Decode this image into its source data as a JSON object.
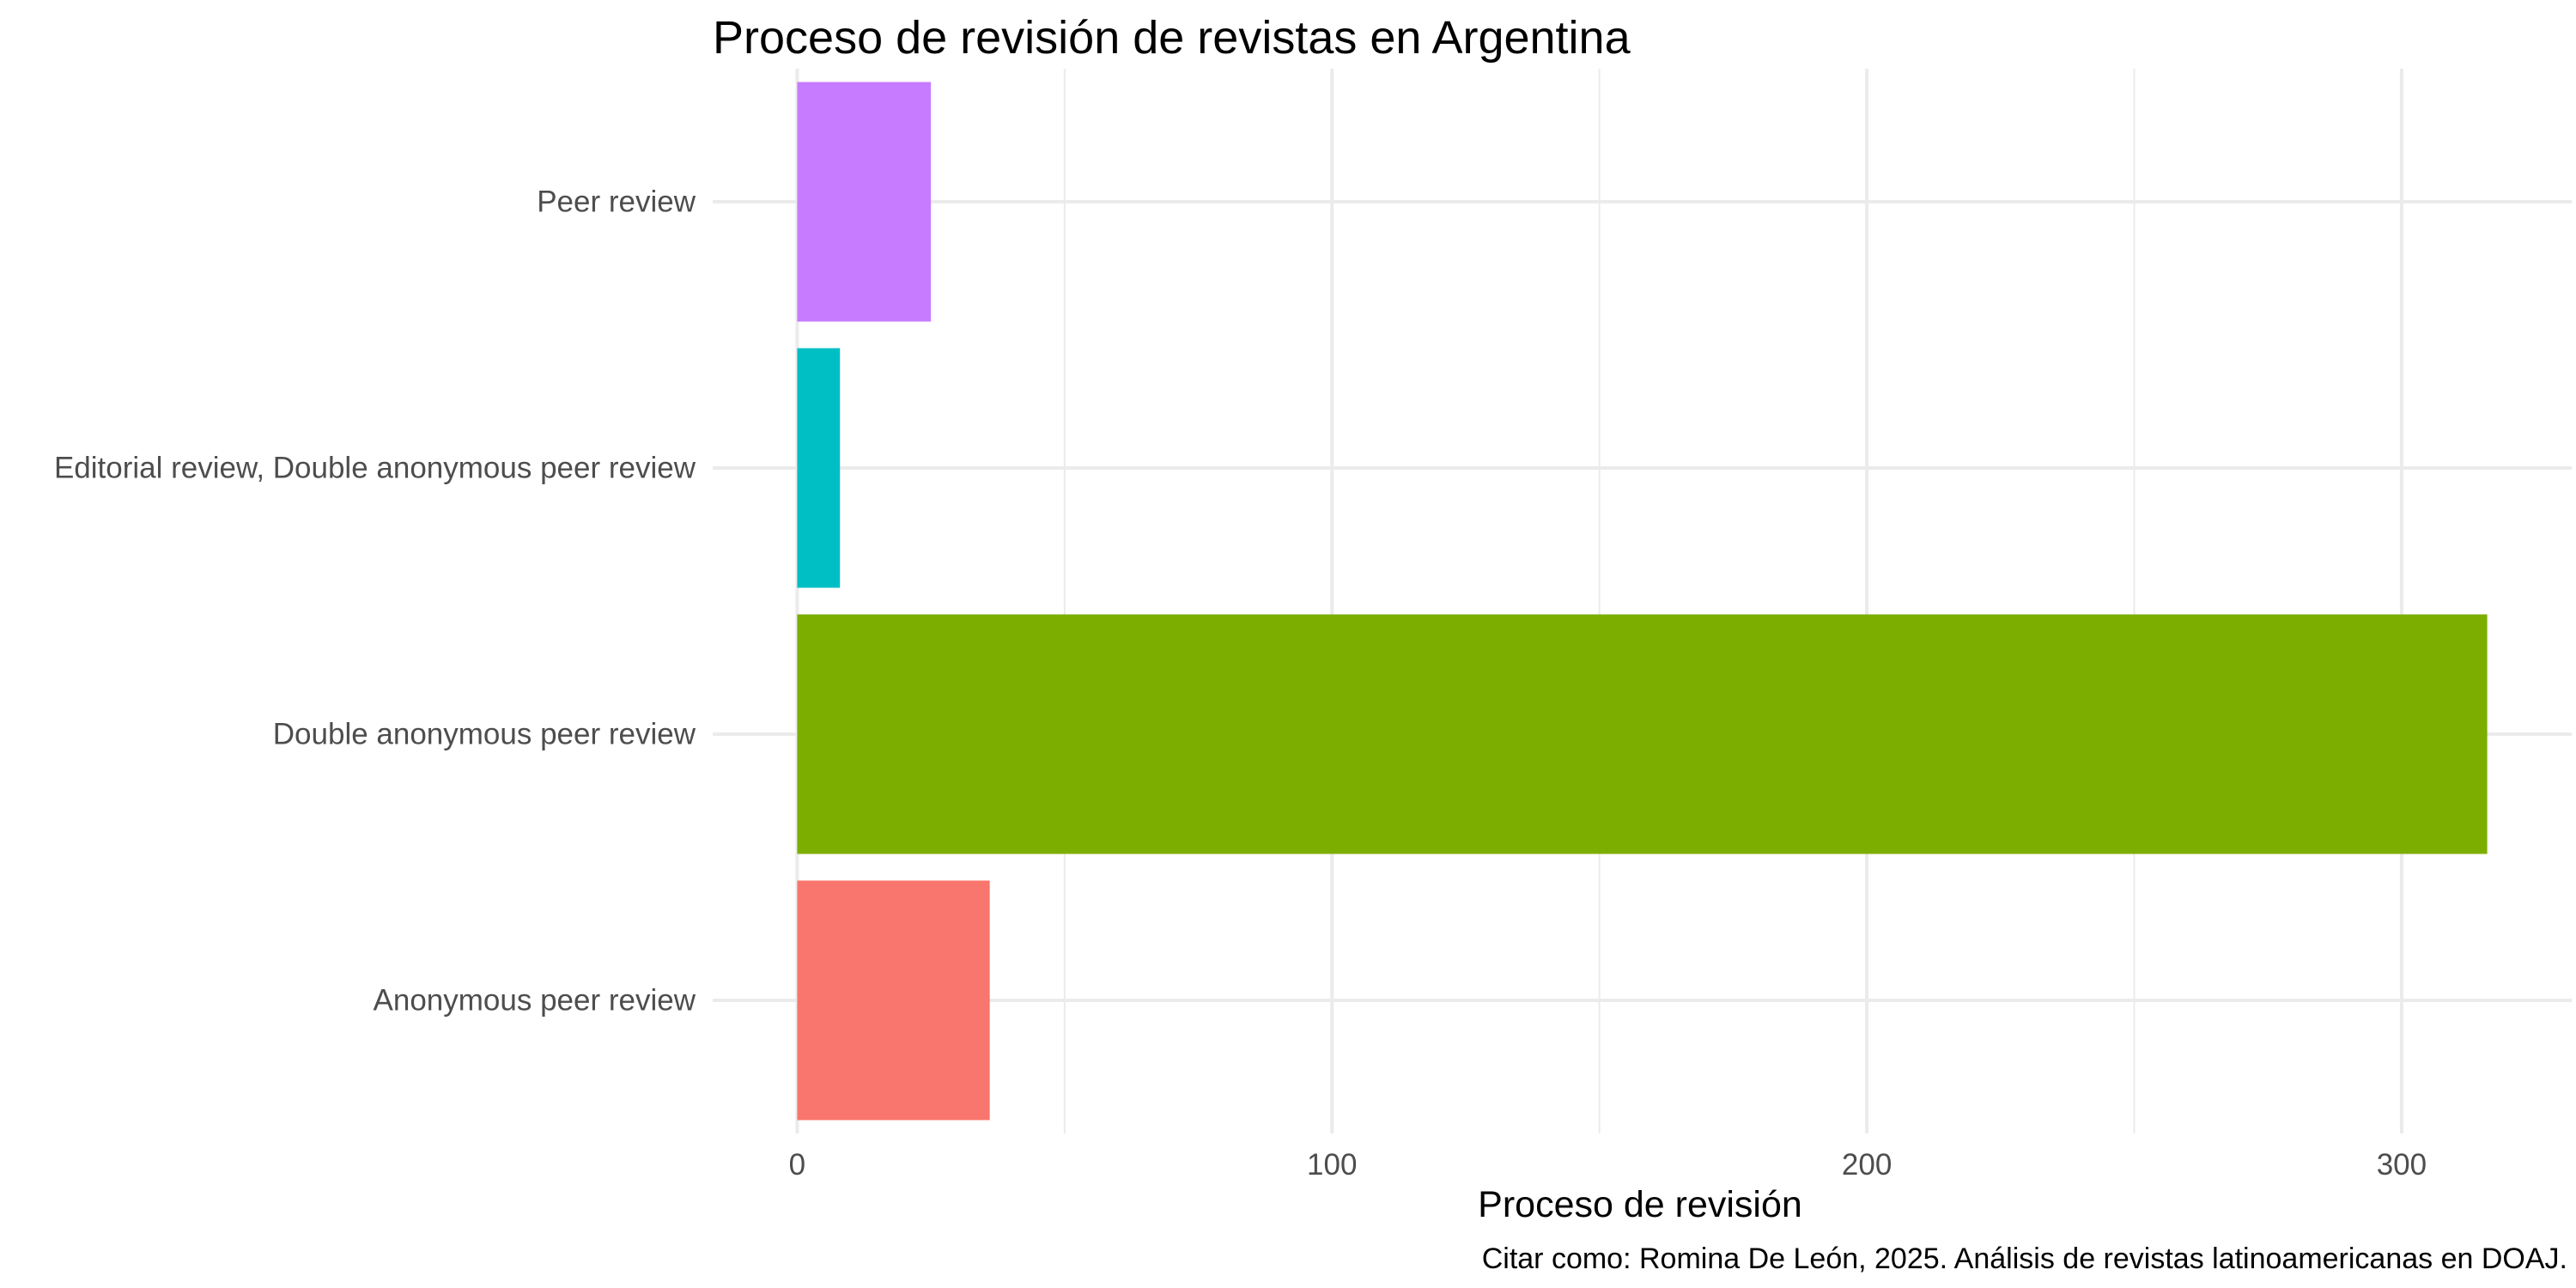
{
  "chart_data": {
    "type": "bar",
    "orientation": "horizontal",
    "title": "Proceso de revisión de revistas en Argentina",
    "xlabel": "Proceso de revisión",
    "ylabel": "",
    "caption": "Citar como: Romina De León, 2025. Análisis de revistas latinoamericanas en DOAJ.",
    "categories": [
      "Anonymous peer review",
      "Double anonymous peer review",
      "Editorial review, Double anonymous peer review",
      "Peer review"
    ],
    "values": [
      36,
      316,
      8,
      25
    ],
    "colors": [
      "#F8766D",
      "#7CAE00",
      "#00BFC4",
      "#C77CFF"
    ],
    "xlim": [
      -15.8,
      331.8
    ],
    "x_ticks": [
      0,
      100,
      200,
      300
    ],
    "x_tick_labels": [
      "0",
      "100",
      "200",
      "300"
    ],
    "grid": true,
    "legend": "none"
  }
}
